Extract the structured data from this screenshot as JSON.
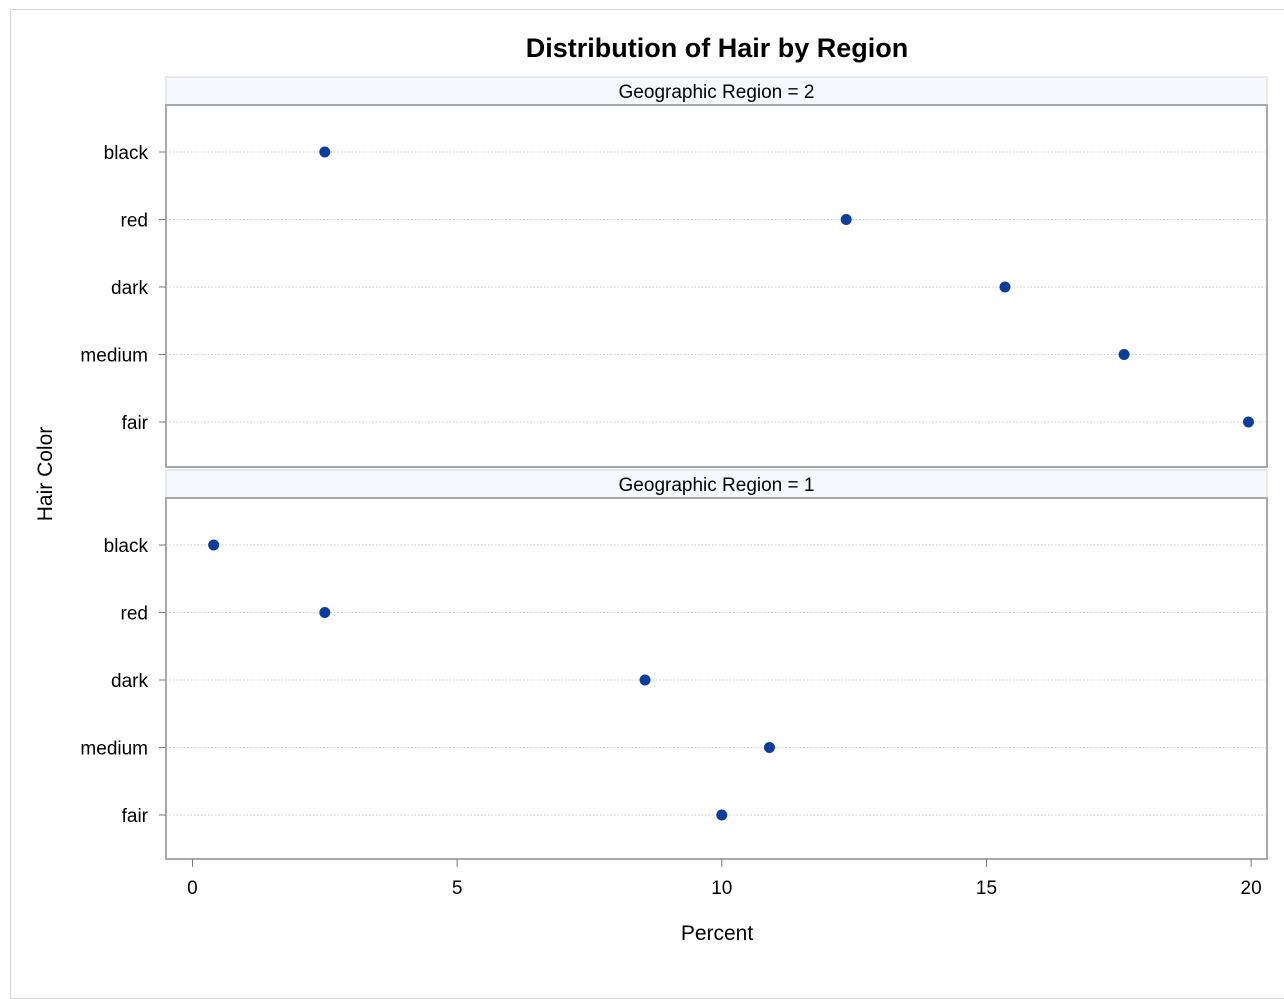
{
  "chart_data": {
    "type": "scatter",
    "title": "Distribution of Hair by Region",
    "xlabel": "Percent",
    "ylabel": "Hair Color",
    "xlim": [
      -0.5,
      20.3
    ],
    "xticks": [
      0,
      5,
      10,
      15,
      20
    ],
    "categories": [
      "black",
      "red",
      "dark",
      "medium",
      "fair"
    ],
    "grid": "horizontal dotted reference lines at each category",
    "panels": [
      {
        "label": "Geographic Region = 2",
        "points": [
          {
            "category": "black",
            "x": 2.5
          },
          {
            "category": "red",
            "x": 12.35
          },
          {
            "category": "dark",
            "x": 15.35
          },
          {
            "category": "medium",
            "x": 17.6
          },
          {
            "category": "fair",
            "x": 19.95
          }
        ]
      },
      {
        "label": "Geographic Region = 1",
        "points": [
          {
            "category": "black",
            "x": 0.4
          },
          {
            "category": "red",
            "x": 2.5
          },
          {
            "category": "dark",
            "x": 8.55
          },
          {
            "category": "medium",
            "x": 10.9
          },
          {
            "category": "fair",
            "x": 10.0
          }
        ]
      }
    ],
    "colors": {
      "marker": "#0b3d9c",
      "panel_header_bg": "#f6f8fd",
      "panel_border": "#a8a8a8",
      "grid": "#c8c8c8"
    }
  }
}
